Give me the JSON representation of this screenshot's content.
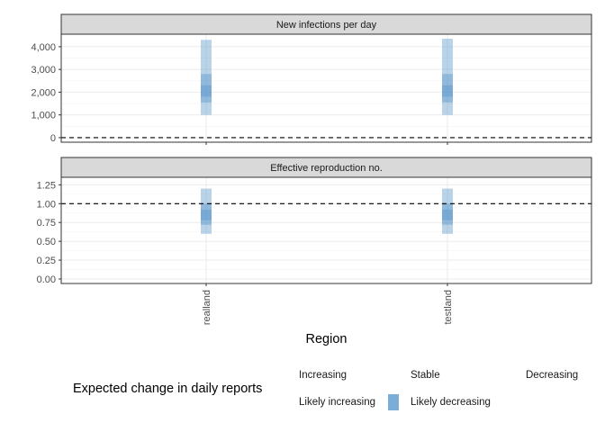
{
  "chart_data": [
    {
      "type": "range",
      "title": "New infections per day",
      "categories": [
        "realland",
        "testland"
      ],
      "ylim": [
        -200,
        4550
      ],
      "yticks": [
        0,
        1000,
        2000,
        3000,
        4000
      ],
      "ytick_labels": [
        "0",
        "1,000",
        "2,000",
        "3,000",
        "4,000"
      ],
      "reference_line": 0,
      "series": [
        {
          "name": "realland",
          "outer": [
            1000,
            4300
          ],
          "mid": [
            1550,
            2800
          ],
          "inner": [
            1800,
            2300
          ]
        },
        {
          "name": "testland",
          "outer": [
            1000,
            4350
          ],
          "mid": [
            1550,
            2800
          ],
          "inner": [
            1800,
            2300
          ]
        }
      ]
    },
    {
      "type": "range",
      "title": "Effective reproduction no.",
      "categories": [
        "realland",
        "testland"
      ],
      "ylim": [
        -0.06,
        1.35
      ],
      "yticks": [
        0,
        0.25,
        0.5,
        0.75,
        1.0,
        1.25
      ],
      "ytick_labels": [
        "0.00",
        "0.25",
        "0.50",
        "0.75",
        "1.00",
        "1.25"
      ],
      "reference_line": 1.0,
      "series": [
        {
          "name": "realland",
          "outer": [
            0.6,
            1.2
          ],
          "mid": [
            0.72,
            1.0
          ],
          "inner": [
            0.78,
            0.92
          ]
        },
        {
          "name": "testland",
          "outer": [
            0.6,
            1.2
          ],
          "mid": [
            0.72,
            1.0
          ],
          "inner": [
            0.78,
            0.92
          ]
        }
      ]
    }
  ],
  "axes": {
    "xlabel": "Region"
  },
  "legend": {
    "title": "Expected change in daily reports",
    "items": [
      "Increasing",
      "Stable",
      "Decreasing",
      "Likely increasing",
      "Likely decreasing"
    ]
  },
  "colors": {
    "fill": "#5797c9",
    "strip_bg": "#d9d9d9",
    "grid": "#ebebeb",
    "panel_border": "#333333",
    "text": "#4d4d4d"
  }
}
